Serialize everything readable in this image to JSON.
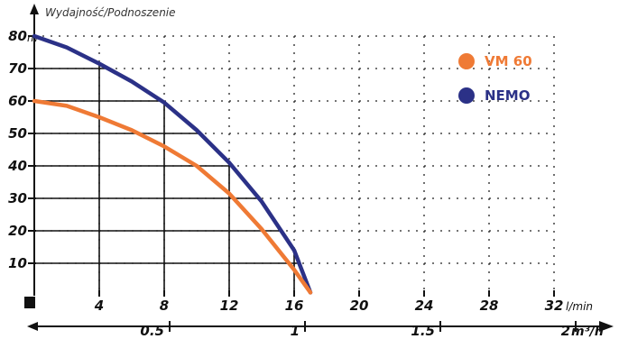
{
  "chart_data": {
    "type": "line",
    "y_axis_title": "Wydajność/Podnoszenie",
    "y_unit": "m",
    "x_unit": "l/min",
    "x2_unit": "m³/h",
    "y_ticks": [
      10,
      20,
      30,
      40,
      50,
      60,
      70,
      80
    ],
    "x_ticks": [
      4,
      8,
      12,
      16,
      20,
      24,
      28,
      32
    ],
    "x2_ticks": [
      "0.5",
      "1",
      "1.5",
      "2"
    ],
    "xlim": [
      0,
      32
    ],
    "ylim": [
      0,
      80
    ],
    "series": [
      {
        "name": "VM 60",
        "color": "#ef7a35",
        "points": [
          [
            0,
            60
          ],
          [
            2,
            58.5
          ],
          [
            4,
            55
          ],
          [
            6,
            51
          ],
          [
            8,
            46
          ],
          [
            10,
            40
          ],
          [
            12,
            31.5
          ],
          [
            14,
            20.5
          ],
          [
            16,
            8
          ],
          [
            17,
            1
          ]
        ]
      },
      {
        "name": "NEMO",
        "color": "#2b3187",
        "points": [
          [
            0,
            80
          ],
          [
            2,
            76.5
          ],
          [
            4,
            71.5
          ],
          [
            6,
            66
          ],
          [
            8,
            59.5
          ],
          [
            10,
            51
          ],
          [
            12,
            41
          ],
          [
            14,
            29
          ],
          [
            16,
            14
          ],
          [
            17,
            1
          ]
        ]
      }
    ]
  }
}
